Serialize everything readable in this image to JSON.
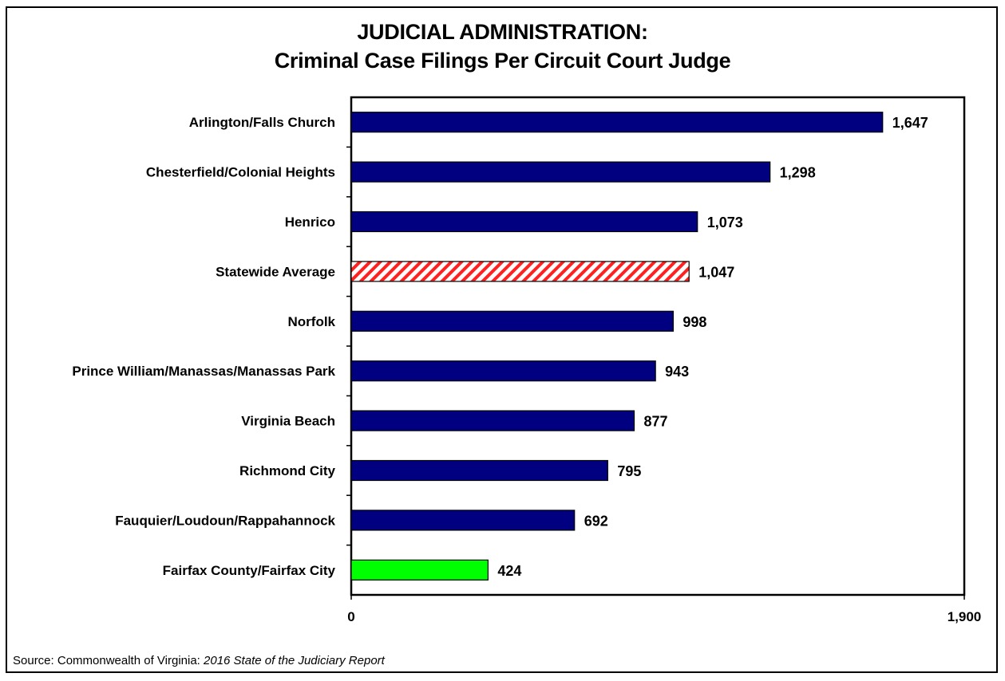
{
  "chart_data": {
    "type": "bar",
    "orientation": "horizontal",
    "title": "JUDICIAL ADMINISTRATION:",
    "subtitle": "Criminal Case Filings Per Circuit Court Judge",
    "categories": [
      "Arlington/Falls Church",
      "Chesterfield/Colonial Heights",
      "Henrico",
      "Statewide Average",
      "Norfolk",
      "Prince William/Manassas/Manassas Park",
      "Virginia Beach",
      "Richmond City",
      "Fauquier/Loudoun/Rappahannock",
      "Fairfax County/Fairfax City"
    ],
    "values": [
      1647,
      1298,
      1073,
      1047,
      998,
      943,
      877,
      795,
      692,
      424
    ],
    "value_labels": [
      "1,647",
      "1,298",
      "1,073",
      "1,047",
      "998",
      "943",
      "877",
      "795",
      "692",
      "424"
    ],
    "xlim": [
      0,
      1900
    ],
    "x_tick_labels": [
      "0",
      "1,900"
    ],
    "grid": false,
    "legend": "none",
    "bar_styles": [
      "default",
      "default",
      "default",
      "hatched",
      "default",
      "default",
      "default",
      "default",
      "default",
      "highlight"
    ],
    "colors": {
      "default": "#000080",
      "hatched_stripe": "#ff2020",
      "hatched_background": "#ffffff",
      "highlight": "#00ff00",
      "outline": "#000000"
    }
  },
  "source": {
    "prefix": "Source: Commonwealth of Virginia: ",
    "report": "2016 State of the Judiciary Report"
  }
}
